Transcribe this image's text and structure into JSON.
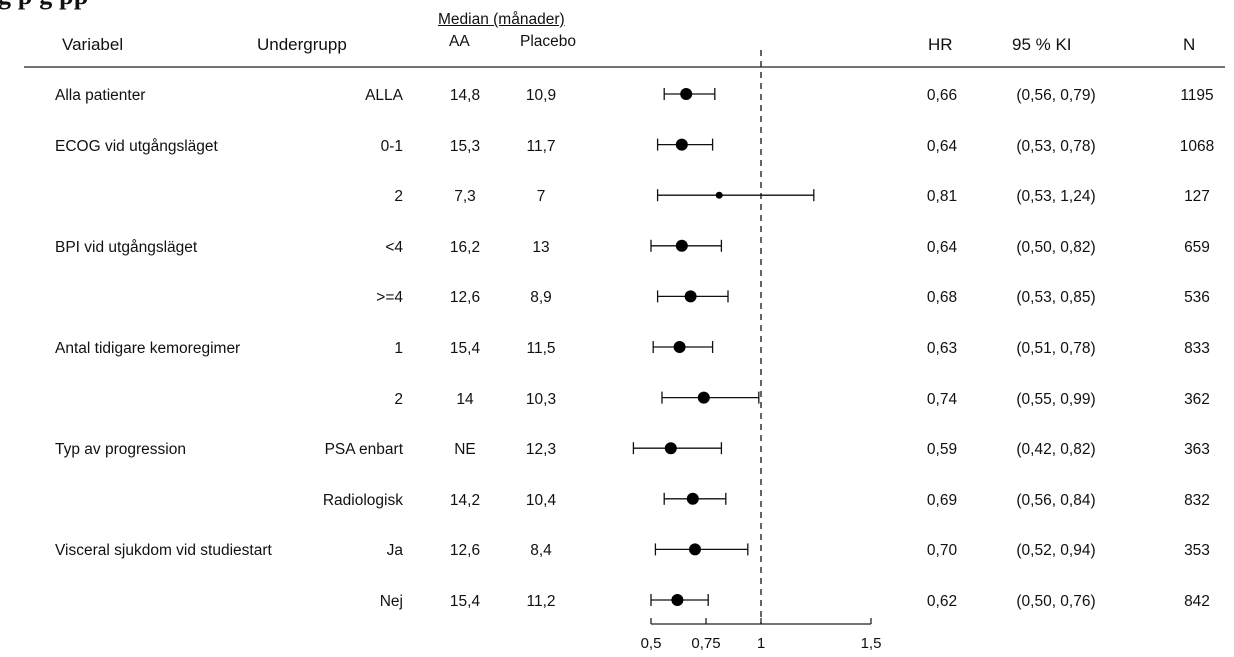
{
  "title_fragment": "g                                              p        g pp",
  "header": {
    "variable": "Variabel",
    "subgroup": "Undergrupp",
    "median_group": "Median (månader)",
    "aa": "AA",
    "placebo": "Placebo",
    "hr": "HR",
    "ci": "95 % KI",
    "n": "N"
  },
  "rows": [
    {
      "variable": "Alla patienter",
      "subgroup": "ALLA",
      "aa": "14,8",
      "placebo": "10,9",
      "hr": "0,66",
      "ci": "(0,56, 0,79)",
      "n": "1195"
    },
    {
      "variable": "ECOG vid utgångsläget",
      "subgroup": "0-1",
      "aa": "15,3",
      "placebo": "11,7",
      "hr": "0,64",
      "ci": "(0,53, 0,78)",
      "n": "1068"
    },
    {
      "variable": "",
      "subgroup": "2",
      "aa": "7,3",
      "placebo": "7",
      "hr": "0,81",
      "ci": "(0,53, 1,24)",
      "n": "127"
    },
    {
      "variable": "BPI vid utgångsläget",
      "subgroup": "<4",
      "aa": "16,2",
      "placebo": "13",
      "hr": "0,64",
      "ci": "(0,50, 0,82)",
      "n": "659"
    },
    {
      "variable": "",
      "subgroup": ">=4",
      "aa": "12,6",
      "placebo": "8,9",
      "hr": "0,68",
      "ci": "(0,53, 0,85)",
      "n": "536"
    },
    {
      "variable": "Antal tidigare kemoregimer",
      "subgroup": "1",
      "aa": "15,4",
      "placebo": "11,5",
      "hr": "0,63",
      "ci": "(0,51, 0,78)",
      "n": "833"
    },
    {
      "variable": "",
      "subgroup": "2",
      "aa": "14",
      "placebo": "10,3",
      "hr": "0,74",
      "ci": "(0,55, 0,99)",
      "n": "362"
    },
    {
      "variable": "Typ av progression",
      "subgroup": "PSA enbart",
      "aa": "NE",
      "placebo": "12,3",
      "hr": "0,59",
      "ci": "(0,42, 0,82)",
      "n": "363"
    },
    {
      "variable": "",
      "subgroup": "Radiologisk",
      "aa": "14,2",
      "placebo": "10,4",
      "hr": "0,69",
      "ci": "(0,56, 0,84)",
      "n": "832"
    },
    {
      "variable": "Visceral sjukdom vid studiestart",
      "subgroup": "Ja",
      "aa": "12,6",
      "placebo": "8,4",
      "hr": "0,70",
      "ci": "(0,52, 0,94)",
      "n": "353"
    },
    {
      "variable": "",
      "subgroup": "Nej",
      "aa": "15,4",
      "placebo": "11,2",
      "hr": "0,62",
      "ci": "(0,50, 0,76)",
      "n": "842"
    }
  ],
  "chart_data": {
    "type": "forest",
    "x_ticks": [
      "0,5",
      "0,75",
      "1",
      "1,5"
    ],
    "x_tick_values": [
      0.5,
      0.75,
      1,
      1.5
    ],
    "reference_line": 1,
    "reference_style": "dashed",
    "points": [
      {
        "hr": 0.66,
        "lo": 0.56,
        "hi": 0.79,
        "marker": "large"
      },
      {
        "hr": 0.64,
        "lo": 0.53,
        "hi": 0.78,
        "marker": "large"
      },
      {
        "hr": 0.81,
        "lo": 0.53,
        "hi": 1.24,
        "marker": "small"
      },
      {
        "hr": 0.64,
        "lo": 0.5,
        "hi": 0.82,
        "marker": "large"
      },
      {
        "hr": 0.68,
        "lo": 0.53,
        "hi": 0.85,
        "marker": "large"
      },
      {
        "hr": 0.63,
        "lo": 0.51,
        "hi": 0.78,
        "marker": "large"
      },
      {
        "hr": 0.74,
        "lo": 0.55,
        "hi": 0.99,
        "marker": "large"
      },
      {
        "hr": 0.59,
        "lo": 0.42,
        "hi": 0.82,
        "marker": "large"
      },
      {
        "hr": 0.69,
        "lo": 0.56,
        "hi": 0.84,
        "marker": "large"
      },
      {
        "hr": 0.7,
        "lo": 0.52,
        "hi": 0.94,
        "marker": "large"
      },
      {
        "hr": 0.62,
        "lo": 0.5,
        "hi": 0.76,
        "marker": "large"
      }
    ]
  }
}
